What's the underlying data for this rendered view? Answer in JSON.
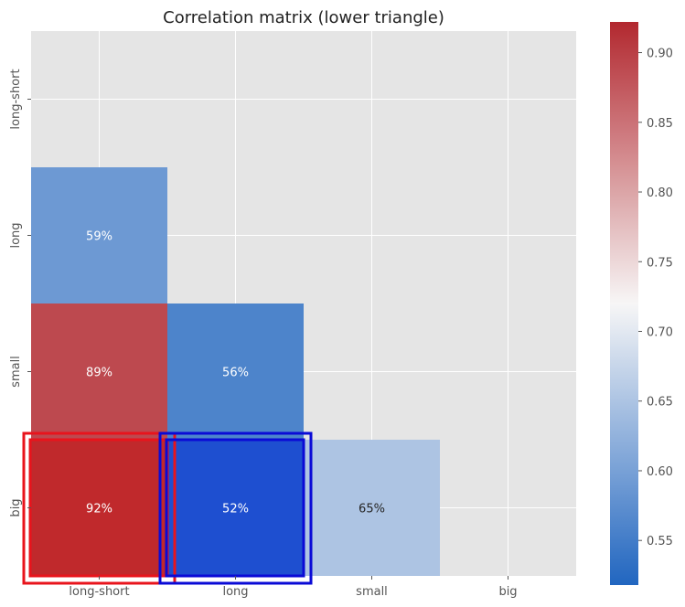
{
  "chart_data": {
    "type": "heatmap",
    "title": "Correlation matrix (lower triangle)",
    "x_categories": [
      "long-short",
      "long",
      "small",
      "big"
    ],
    "y_categories": [
      "long-short",
      "long",
      "small",
      "big"
    ],
    "cells": [
      {
        "row": "long",
        "col": "long-short",
        "value": 0.59,
        "label": "59%"
      },
      {
        "row": "small",
        "col": "long-short",
        "value": 0.89,
        "label": "89%"
      },
      {
        "row": "small",
        "col": "long",
        "value": 0.56,
        "label": "56%"
      },
      {
        "row": "big",
        "col": "long-short",
        "value": 0.92,
        "label": "92%"
      },
      {
        "row": "big",
        "col": "long",
        "value": 0.52,
        "label": "52%"
      },
      {
        "row": "big",
        "col": "small",
        "value": 0.65,
        "label": "65%"
      }
    ],
    "colorbar": {
      "range": [
        0.518,
        0.922
      ],
      "ticks": [
        0.55,
        0.6,
        0.65,
        0.7,
        0.75,
        0.8,
        0.85,
        0.9
      ],
      "tick_labels": [
        "0.55",
        "0.60",
        "0.65",
        "0.70",
        "0.75",
        "0.80",
        "0.85",
        "0.90"
      ],
      "low_color": "#2166c0",
      "mid_color": "#f7f6f6",
      "high_color": "#b2282f"
    },
    "highlights": [
      {
        "row": "big",
        "col": "long-short",
        "color": "#e8141c",
        "fill": "#c0292c"
      },
      {
        "row": "big",
        "col": "long",
        "color": "#0a0ad6",
        "fill": "#1e4fd0"
      }
    ],
    "grid": true,
    "background": "#e5e5e5"
  }
}
